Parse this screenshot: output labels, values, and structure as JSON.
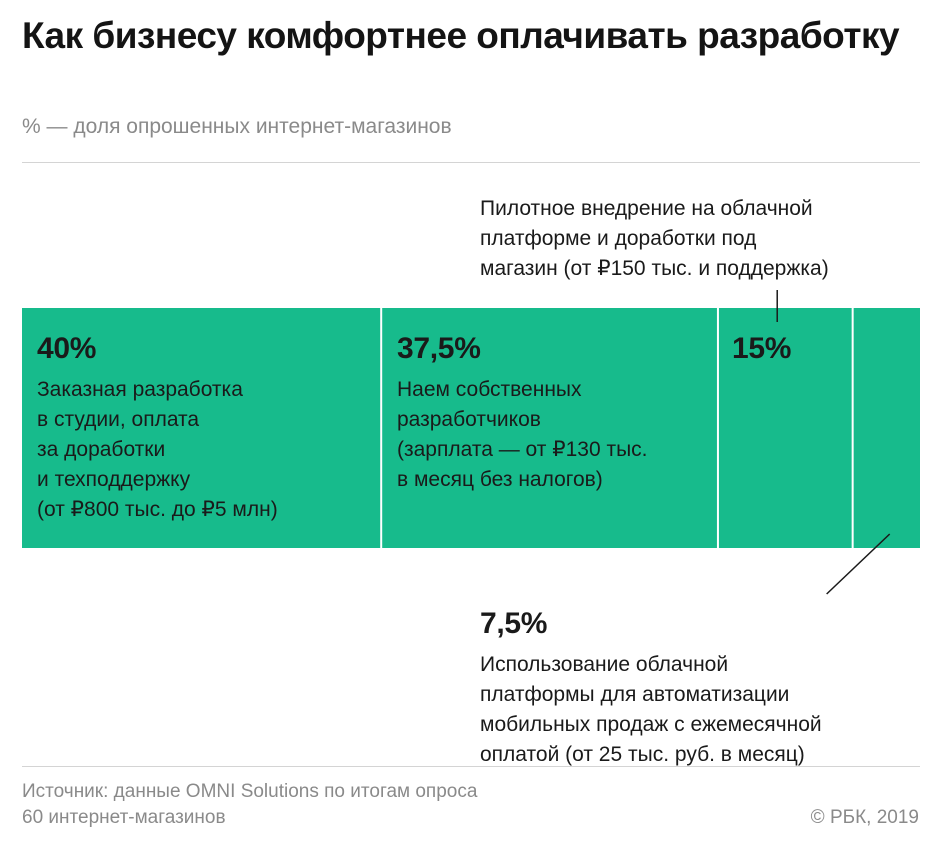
{
  "colors": {
    "bar": "#17bb8c",
    "divider": "#ffffff",
    "leader": "#1a1a1a"
  },
  "chart_data": {
    "type": "bar",
    "orientation": "horizontal-stacked",
    "title": "Как бизнесу комфортнее оплачивать разработку",
    "subtitle": "% — доля опрошенных интернет-магазинов",
    "unit": "%",
    "total": 100,
    "segments": [
      {
        "value": 40,
        "label": "40%",
        "description": "Заказная разработка\nв студии, оплата\nза доработки\nи техподдержку\n(от ₽800 тыс. до ₽5 млн)"
      },
      {
        "value": 37.5,
        "label": "37,5%",
        "description": "Наем собственных\nразработчиков\n(зарплата — от ₽130 тыс.\nв месяц без налогов)"
      },
      {
        "value": 15,
        "label": "15%",
        "description": "Пилотное внедрение на облачной\nплатформе и доработки под\nмагазин (от ₽150 тыс. и поддержка)"
      },
      {
        "value": 7.5,
        "label": "7,5%",
        "description": "Использование облачной\nплатформы для автоматизации\nмобильных продаж с ежемесячной\nоплатой (от 25 тыс. руб. в месяц)"
      }
    ],
    "source": "Источник: данные OMNI Solutions по итогам опроса\n60 интернет-магазинов",
    "credit": "© РБК, 2019"
  }
}
